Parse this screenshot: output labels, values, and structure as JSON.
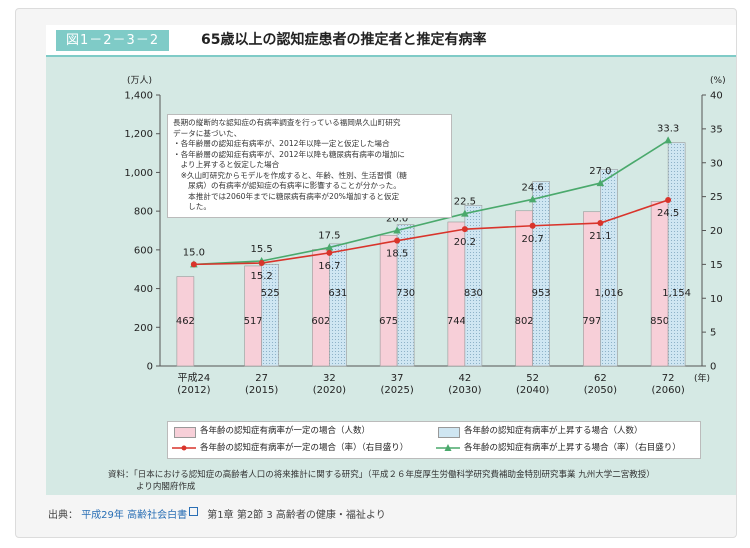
{
  "header": {
    "figure_number": "図1－2－3－2",
    "title": "65歳以上の認知症患者の推定者と推定有病率"
  },
  "note": {
    "lines": [
      "長期の縦断的な認知症の有病率調査を行っている福岡県久山町研究",
      "データに基づいた、",
      "・各年齢層の認知症有病率が、2012年以降一定と仮定した場合",
      "・各年齢層の認知症有病率が、2012年以降も糖尿病有病率の増加に",
      "　より上昇すると仮定した場合",
      "　※久山町研究からモデルを作成すると、年齢、性別、生活習慣（糖",
      "　　尿病）の有病率が認知症の有病率に影響することが分かった。",
      "　　本推計では2060年までに糖尿病有病率が20%増加すると仮定",
      "　　した。"
    ]
  },
  "chart_data": {
    "type": "bar",
    "categories": [
      {
        "line1": "平成24",
        "line2": "(2012)"
      },
      {
        "line1": "27",
        "line2": "(2015)"
      },
      {
        "line1": "32",
        "line2": "(2020)"
      },
      {
        "line1": "37",
        "line2": "(2025)"
      },
      {
        "line1": "42",
        "line2": "(2030)"
      },
      {
        "line1": "52",
        "line2": "(2040)"
      },
      {
        "line1": "62",
        "line2": "(2050)"
      },
      {
        "line1": "72",
        "line2": "(2060)"
      }
    ],
    "x_unit_label": "(年)",
    "series": [
      {
        "name": "各年齢の認知症有病率が一定の場合（人数）",
        "kind": "bar",
        "axis": "left",
        "values": [
          462,
          517,
          602,
          675,
          744,
          802,
          797,
          850
        ],
        "color": "#f7cfd8"
      },
      {
        "name": "各年齢の認知症有病率が上昇する場合（人数）",
        "kind": "bar",
        "axis": "left",
        "values": [
          null,
          525,
          631,
          730,
          830,
          953,
          1016,
          1154
        ],
        "color": "#cfe6f2"
      },
      {
        "name": "各年齢の認知症有病率が一定の場合（率）（右目盛り）",
        "kind": "line",
        "axis": "right",
        "values": [
          15.0,
          15.2,
          16.7,
          18.5,
          20.2,
          20.7,
          21.1,
          24.5
        ],
        "color": "#d9342b"
      },
      {
        "name": "各年齢の認知症有病率が上昇する場合（率）（右目盛り）",
        "kind": "line",
        "axis": "right",
        "values": [
          15.0,
          15.5,
          17.5,
          20.0,
          22.5,
          24.6,
          27.0,
          33.3
        ],
        "color": "#4aa96c"
      }
    ],
    "left_axis": {
      "unit": "(万人)",
      "min": 0,
      "max": 1400,
      "ticks": [
        "0",
        "200",
        "400",
        "600",
        "800",
        "1,000",
        "1,200",
        "1,400"
      ]
    },
    "right_axis": {
      "unit": "(%)",
      "min": 0,
      "max": 40,
      "ticks": [
        "0",
        "5",
        "10",
        "15",
        "20",
        "25",
        "30",
        "35",
        "40"
      ]
    },
    "gridlines": false,
    "legend_position": "bottom"
  },
  "legend": {
    "bar_constant": "各年齢の認知症有病率が一定の場合（人数）",
    "bar_rising": "各年齢の認知症有病率が上昇する場合（人数）",
    "line_constant": "各年齢の認知症有病率が一定の場合（率）（右目盛り）",
    "line_rising": "各年齢の認知症有病率が上昇する場合（率）（右目盛り）"
  },
  "source": {
    "text": "資料：「日本における認知症の高齢者人口の将来推計に関する研究」（平成２６年度厚生労働科学研究費補助金特別研究事業 九州大学二宮教授）",
    "text2": "より内閣府作成"
  },
  "citation": {
    "prefix": "出典：",
    "link": "平成29年 高齢社会白書",
    "suffix": "第1章 第2節 3 高齢者の健康・福祉より"
  },
  "colors": {
    "figure_bg": "#d5e9e4",
    "accent": "#7fcbc7",
    "bar_constant_fill": "#f7cfd8",
    "bar_rising_fill": "#cfe6f2",
    "line_constant": "#d9342b",
    "line_rising": "#4aa96c"
  }
}
